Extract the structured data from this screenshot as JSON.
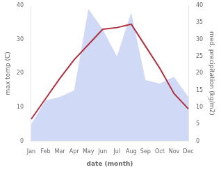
{
  "chart_data": {
    "type": "line",
    "xlabel": "date (month)",
    "ylabel": "max temp (C)",
    "y2label": "med. precipitation (kg/m2)",
    "categories": [
      "Jan",
      "Feb",
      "Mar",
      "Apr",
      "May",
      "Jun",
      "Jul",
      "Aug",
      "Sep",
      "Oct",
      "Nov",
      "Dec"
    ],
    "series": [
      {
        "type": "area",
        "axis": "y2",
        "color": "#aabbee",
        "values": [
          5,
          12,
          13,
          15,
          39,
          33,
          25,
          38,
          18,
          17,
          19,
          13
        ]
      },
      {
        "type": "line",
        "color": "#b03040",
        "values": [
          6.5,
          12.5,
          18.5,
          24.0,
          28.5,
          33.0,
          33.5,
          34.5,
          28.0,
          21.5,
          14.0,
          9.5
        ]
      }
    ],
    "ylim": [
      0,
      40
    ],
    "yticks": [
      0,
      10,
      20,
      30,
      40
    ],
    "y2lim": [
      0,
      40
    ],
    "y2ticks": [
      0,
      5,
      10,
      15,
      20,
      25,
      30,
      35,
      40
    ],
    "grid": false
  }
}
